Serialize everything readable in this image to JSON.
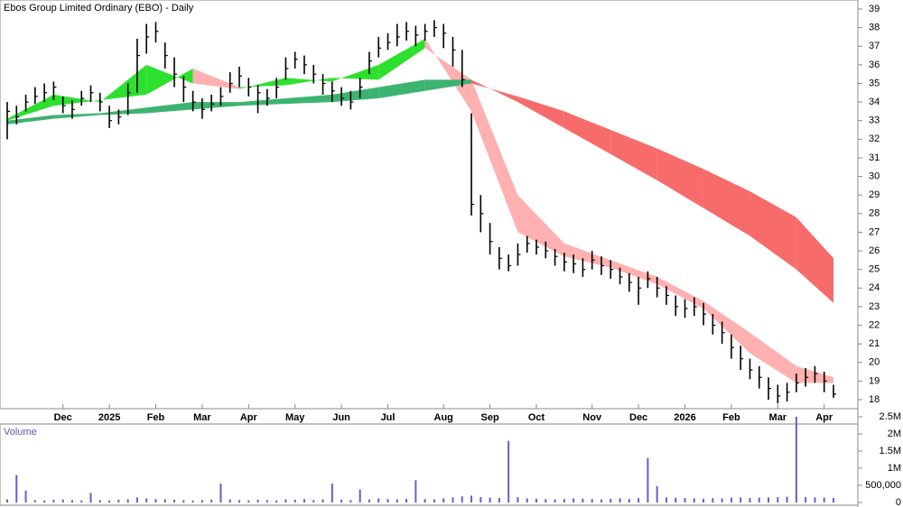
{
  "chart_data": [
    {
      "type": "ohlc",
      "title": "Ebos Group Limited Ordinary (EBO) - Daily",
      "xlim": [
        0,
        89
      ],
      "xticks": [
        {
          "value": 6,
          "label": "Dec"
        },
        {
          "value": 11,
          "label": "2025"
        },
        {
          "value": 16,
          "label": "Feb"
        },
        {
          "value": 21,
          "label": "Mar"
        },
        {
          "value": 26,
          "label": "Apr"
        },
        {
          "value": 31,
          "label": "May"
        },
        {
          "value": 36,
          "label": "Jun"
        },
        {
          "value": 41,
          "label": "Jul"
        },
        {
          "value": 47,
          "label": "Aug"
        },
        {
          "value": 52,
          "label": "Sep"
        },
        {
          "value": 57,
          "label": "Oct"
        },
        {
          "value": 63,
          "label": "Nov"
        },
        {
          "value": 68,
          "label": "Dec"
        },
        {
          "value": 73,
          "label": "2026"
        },
        {
          "value": 78,
          "label": "Feb"
        },
        {
          "value": 83,
          "label": "Mar"
        },
        {
          "value": 88,
          "label": "Apr"
        }
      ],
      "ylim": [
        18,
        39
      ],
      "yticks": [
        18,
        19,
        20,
        21,
        22,
        23,
        24,
        25,
        26,
        27,
        28,
        29,
        30,
        31,
        32,
        33,
        34,
        35,
        36,
        37,
        38,
        39
      ],
      "color": "#000000",
      "high": [
        34.0,
        33.8,
        34.4,
        34.8,
        35.0,
        35.1,
        34.3,
        34.1,
        34.6,
        34.9,
        34.5,
        33.8,
        33.6,
        35.0,
        37.4,
        38.2,
        38.3,
        37.2,
        36.4,
        35.4,
        34.6,
        34.2,
        34.4,
        34.8,
        35.6,
        35.9,
        35.3,
        34.9,
        34.7,
        35.3,
        36.4,
        36.7,
        36.5,
        36.0,
        35.5,
        35.1,
        34.8,
        34.6,
        35.3,
        36.7,
        37.5,
        37.7,
        38.2,
        38.3,
        38.1,
        38.2,
        38.4,
        38.2,
        37.5,
        36.8,
        33.4,
        29.0,
        27.5,
        26.2,
        25.8,
        26.4,
        26.8,
        26.6,
        26.5,
        26.1,
        25.9,
        25.8,
        25.6,
        26.0,
        25.7,
        25.5,
        25.1,
        24.8,
        24.6,
        24.9,
        24.6,
        24.1,
        23.6,
        23.4,
        23.5,
        23.2,
        22.6,
        22.2,
        21.5,
        20.9,
        20.2,
        19.8,
        19.2,
        18.8,
        18.9,
        19.4,
        19.7,
        19.8,
        19.5,
        18.8
      ],
      "low": [
        32.0,
        32.8,
        33.5,
        33.9,
        34.0,
        34.1,
        33.4,
        33.1,
        33.8,
        34.0,
        33.5,
        32.6,
        32.8,
        33.3,
        34.5,
        36.6,
        37.2,
        35.8,
        34.8,
        34.0,
        33.5,
        33.1,
        33.5,
        33.8,
        34.5,
        34.8,
        34.3,
        33.4,
        33.8,
        34.2,
        35.2,
        35.8,
        35.5,
        35.0,
        34.4,
        34.0,
        33.8,
        33.6,
        34.2,
        35.5,
        36.4,
        36.8,
        37.0,
        37.3,
        37.0,
        37.3,
        37.5,
        36.9,
        35.9,
        34.8,
        27.9,
        27.0,
        25.8,
        25.0,
        24.9,
        25.2,
        25.9,
        25.8,
        25.6,
        25.2,
        24.9,
        24.8,
        24.6,
        25.0,
        24.7,
        24.5,
        24.2,
        23.8,
        23.1,
        24.0,
        23.5,
        23.1,
        22.5,
        22.4,
        22.5,
        22.0,
        21.5,
        21.0,
        20.2,
        19.6,
        19.1,
        18.6,
        18.0,
        17.8,
        17.9,
        18.4,
        18.7,
        18.9,
        18.4,
        18.1
      ],
      "close": [
        33.5,
        33.2,
        34.0,
        34.3,
        34.5,
        34.8,
        33.8,
        33.6,
        34.2,
        34.5,
        34.0,
        33.0,
        33.2,
        34.5,
        36.5,
        37.5,
        37.8,
        36.5,
        35.5,
        34.8,
        34.0,
        33.6,
        33.9,
        34.3,
        35.0,
        35.4,
        34.8,
        34.5,
        34.2,
        34.8,
        35.8,
        36.3,
        36.0,
        35.5,
        35.0,
        34.6,
        34.2,
        34.0,
        34.8,
        36.2,
        36.9,
        37.2,
        37.5,
        37.8,
        37.6,
        37.8,
        38.0,
        37.7,
        36.8,
        35.2,
        28.5,
        28.0,
        26.5,
        25.6,
        25.2,
        25.8,
        26.4,
        26.2,
        26.0,
        25.7,
        25.4,
        25.3,
        25.0,
        25.5,
        25.2,
        25.0,
        24.6,
        24.3,
        24.0,
        24.5,
        24.0,
        23.6,
        23.0,
        22.9,
        23.0,
        22.6,
        22.0,
        21.6,
        20.8,
        20.2,
        19.6,
        19.2,
        18.6,
        18.2,
        18.4,
        18.9,
        19.2,
        19.4,
        19.0,
        18.3
      ],
      "bands": [
        {
          "up_color": "#2ee02e",
          "down_color": "#ffb0b0",
          "x": [
            0,
            5,
            10,
            15,
            20,
            25,
            30,
            35,
            40,
            45,
            50,
            55,
            60,
            65,
            70,
            75,
            80,
            85,
            89
          ],
          "fast": [
            33.1,
            34.4,
            34.0,
            36.0,
            35.0,
            34.7,
            35.3,
            35.1,
            36.0,
            37.4,
            33.5,
            27.0,
            25.7,
            25.1,
            24.2,
            22.9,
            20.5,
            18.9,
            18.9
          ],
          "slow": [
            33.0,
            33.8,
            34.1,
            34.4,
            35.8,
            34.8,
            34.9,
            35.3,
            35.2,
            36.9,
            35.2,
            29.0,
            26.4,
            25.5,
            24.6,
            23.3,
            21.6,
            19.8,
            19.2
          ]
        },
        {
          "up_color": "#3cb371",
          "down_color": "#f76b6b",
          "x": [
            0,
            5,
            10,
            15,
            20,
            25,
            30,
            35,
            40,
            45,
            50,
            55,
            60,
            65,
            70,
            75,
            80,
            85,
            89
          ],
          "fast": [
            33.0,
            33.3,
            33.4,
            33.7,
            34.0,
            34.0,
            34.2,
            34.4,
            34.8,
            35.2,
            35.2,
            34.0,
            32.6,
            31.2,
            29.8,
            28.3,
            26.8,
            25.0,
            23.2
          ],
          "slow": [
            32.8,
            33.1,
            33.3,
            33.4,
            33.6,
            33.8,
            33.9,
            34.0,
            34.2,
            34.6,
            35.0,
            34.3,
            33.5,
            32.5,
            31.5,
            30.4,
            29.2,
            27.8,
            25.6
          ]
        }
      ]
    },
    {
      "type": "bar",
      "title": "Volume",
      "color": "#6b5bd6",
      "ylim": [
        0,
        2500000
      ],
      "yticks": [
        0,
        {
          "value": 500000,
          "label": "500,000"
        },
        {
          "value": 1000000,
          "label": "1M"
        },
        {
          "value": 1500000,
          "label": "1.5M"
        },
        {
          "value": 2000000,
          "label": "2M"
        },
        {
          "value": 2500000,
          "label": "2.5M"
        }
      ],
      "values": [
        90000,
        800000,
        350000,
        70000,
        60000,
        80000,
        90000,
        70000,
        60000,
        280000,
        70000,
        60000,
        80000,
        90000,
        150000,
        120000,
        100000,
        90000,
        80000,
        70000,
        60000,
        70000,
        80000,
        550000,
        90000,
        70000,
        60000,
        80000,
        70000,
        60000,
        90000,
        80000,
        100000,
        70000,
        90000,
        550000,
        80000,
        70000,
        380000,
        90000,
        120000,
        100000,
        90000,
        110000,
        650000,
        100000,
        90000,
        120000,
        150000,
        180000,
        200000,
        160000,
        140000,
        130000,
        1800000,
        160000,
        120000,
        110000,
        100000,
        90000,
        100000,
        120000,
        110000,
        100000,
        90000,
        110000,
        120000,
        100000,
        130000,
        1300000,
        480000,
        150000,
        140000,
        130000,
        120000,
        110000,
        130000,
        120000,
        140000,
        150000,
        130000,
        140000,
        150000,
        160000,
        170000,
        2500000,
        160000,
        150000,
        140000,
        130000
      ]
    }
  ]
}
